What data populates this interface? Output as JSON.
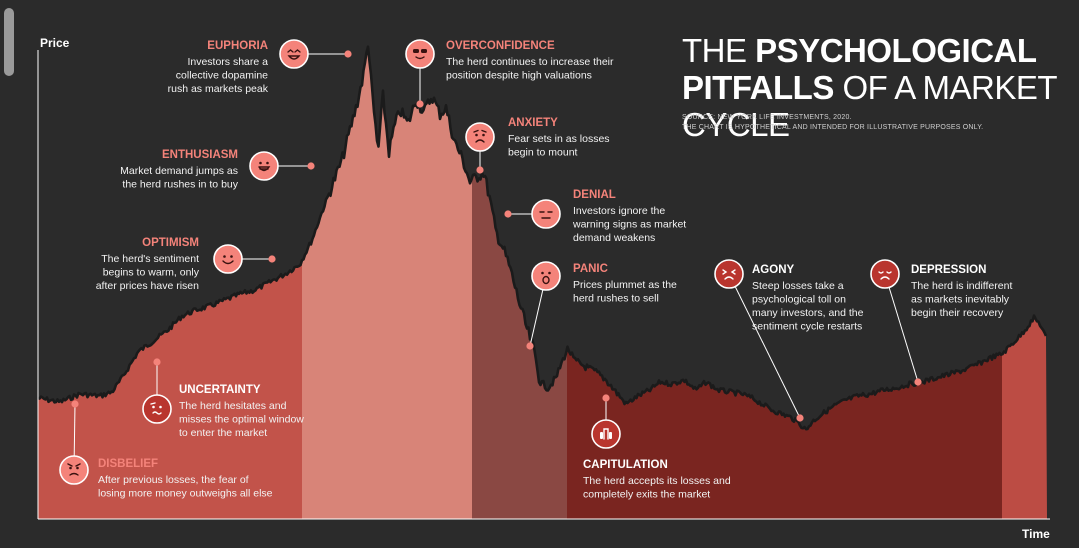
{
  "title": {
    "line1_bold": "PSYCHOLOGICAL",
    "line1_prefix": "THE",
    "line2_bold": "PITFALLS",
    "line2_rest": "OF A MARKET CYCLE"
  },
  "source_note": "SOURCE: NEW YORK LIFE INVESTMENTS, 2020.",
  "disclaimer_note": "THE CHART IS HYPOTHETICAL AND INTENDED FOR ILLUSTRATIVE PURPOSES ONLY.",
  "colors": {
    "background": "#2b2b2b",
    "rise_fill": "#c2534a",
    "peak_fill": "#d88478",
    "decline_fill": "#8a4843",
    "trough_fill": "#7a2520",
    "recovery_fill": "#bc4c44",
    "line": "#1b1b1b",
    "accent_salmon": "#f4837a",
    "accent_red": "#b9352e"
  },
  "chart_data": {
    "type": "area",
    "title": "THE PSYCHOLOGICAL PITFALLS OF A MARKET CYCLE",
    "xlabel": "Time",
    "ylabel": "Price",
    "hypothetical": true,
    "grid": false,
    "phases": [
      {
        "name": "rise",
        "color": "#c2534a"
      },
      {
        "name": "peak",
        "color": "#d88478"
      },
      {
        "name": "decline",
        "color": "#8a4843"
      },
      {
        "name": "trough",
        "color": "#7a2520"
      },
      {
        "name": "recovery",
        "color": "#bc4c44"
      }
    ],
    "stages": [
      {
        "id": "disbelief",
        "name": "DISBELIEF",
        "desc": [
          "After previous losses, the fear of",
          "losing more money outweighs all else"
        ],
        "color": "#f4837a",
        "face": "worried"
      },
      {
        "id": "uncertainty",
        "name": "UNCERTAINTY",
        "desc": [
          "The herd hesitates and",
          "misses the optimal window",
          "to enter the market"
        ],
        "color": "#ffffff",
        "face": "unsure"
      },
      {
        "id": "optimism",
        "name": "OPTIMISM",
        "desc": [
          "The herd's sentiment",
          "begins to warm, only",
          "after prices have risen"
        ],
        "color": "#f4837a",
        "face": "smile"
      },
      {
        "id": "enthusiasm",
        "name": "ENTHUSIASM",
        "desc": [
          "Market demand jumps as",
          "the herd rushes in to buy"
        ],
        "color": "#f4837a",
        "face": "grin"
      },
      {
        "id": "euphoria",
        "name": "EUPHORIA",
        "desc": [
          "Investors share a",
          "collective dopamine",
          "rush as markets peak"
        ],
        "color": "#f4837a",
        "face": "euphoric"
      },
      {
        "id": "overconfidence",
        "name": "OVERCONFIDENCE",
        "desc": [
          "The herd continues to increase their",
          "position despite high valuations"
        ],
        "color": "#f4837a",
        "face": "cool"
      },
      {
        "id": "anxiety",
        "name": "ANXIETY",
        "desc": [
          "Fear sets in as losses",
          "begin to mount"
        ],
        "color": "#f4837a",
        "face": "anxious"
      },
      {
        "id": "denial",
        "name": "DENIAL",
        "desc": [
          "Investors ignore the",
          "warning signs as market",
          "demand weakens"
        ],
        "color": "#f4837a",
        "face": "annoyed"
      },
      {
        "id": "panic",
        "name": "PANIC",
        "desc": [
          "Prices plummet as the",
          "herd rushes to sell"
        ],
        "color": "#f4837a",
        "face": "panic"
      },
      {
        "id": "capitulation",
        "name": "CAPITULATION",
        "desc": [
          "The herd accepts its losses and",
          "completely exits the market"
        ],
        "color": "#ffffff",
        "face": "surrender"
      },
      {
        "id": "agony",
        "name": "AGONY",
        "desc": [
          "Steep losses take a",
          "psychological toll on",
          "many investors, and the",
          "sentiment cycle restarts"
        ],
        "color": "#ffffff",
        "face": "agony"
      },
      {
        "id": "depression",
        "name": "DEPRESSION",
        "desc": [
          "The herd is indifferent",
          "as markets inevitably",
          "begin their recovery"
        ],
        "color": "#ffffff",
        "face": "sad"
      }
    ]
  }
}
